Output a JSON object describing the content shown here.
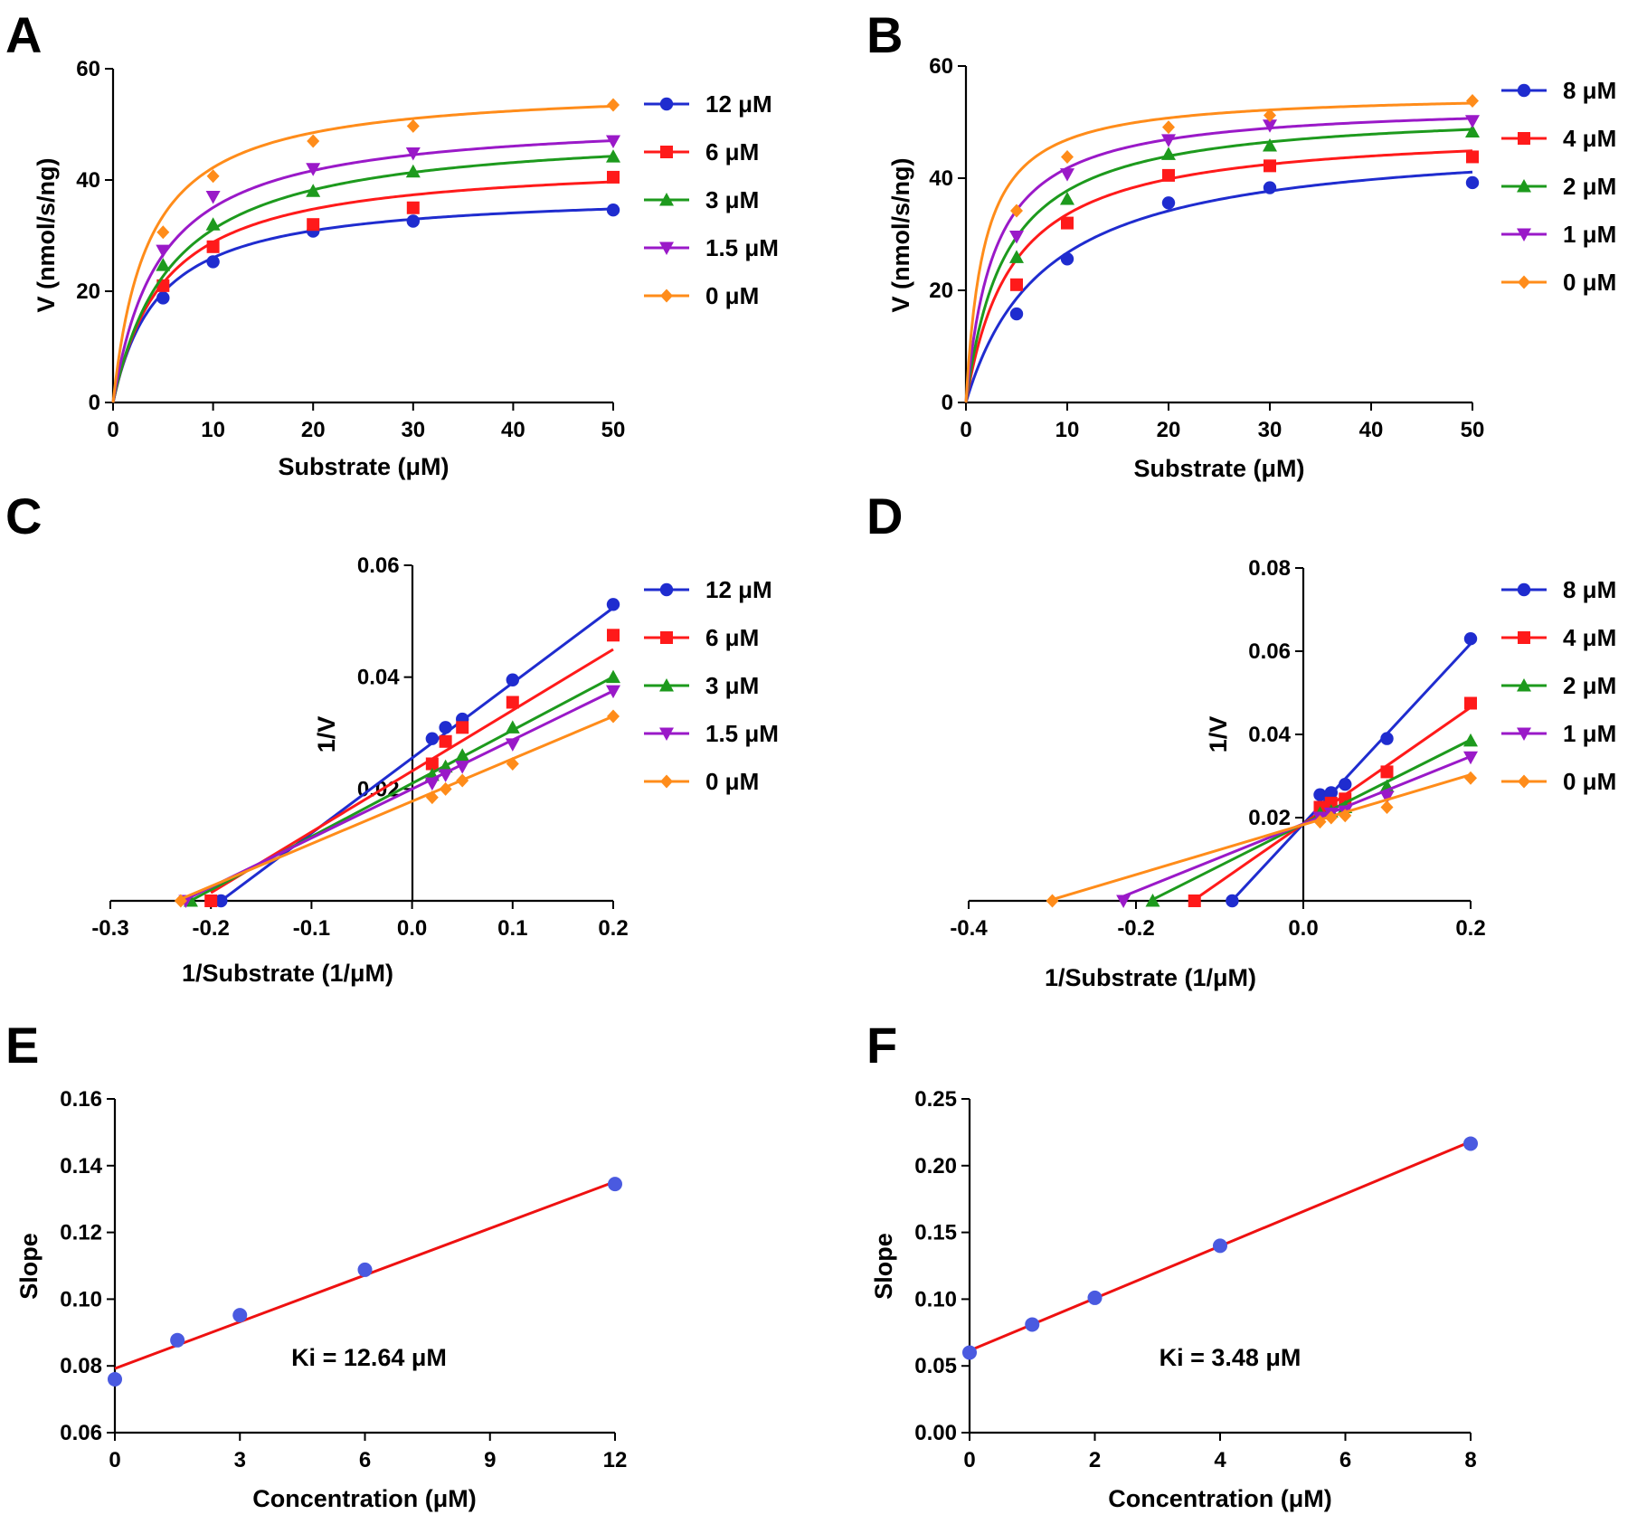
{
  "colors": {
    "blue": "#1f2ccf",
    "red": "#ff1a1a",
    "green": "#1d9a1d",
    "purple": "#9a19c8",
    "orange": "#ff8c1a",
    "point_blue": "#4a5ae0",
    "fit_red": "#ee1111",
    "axis": "#000000"
  },
  "chart_data": [
    {
      "panel": "A",
      "type": "line",
      "xlabel": "Substrate (μM)",
      "ylabel": "V (nmol/s/ng)",
      "xlim": [
        0,
        50
      ],
      "ylim": [
        0,
        60
      ],
      "xticks": [
        0,
        10,
        20,
        30,
        40,
        50
      ],
      "yticks": [
        0,
        20,
        40,
        60
      ],
      "x": [
        5,
        10,
        20,
        30,
        50
      ],
      "legend_position": "right",
      "series": [
        {
          "name": "12 μM",
          "color": "blue",
          "marker": "circle",
          "values": [
            18.8,
            25.3,
            30.8,
            32.6,
            34.6
          ],
          "fit": {
            "vmax": 38.0,
            "km": 4.6
          }
        },
        {
          "name": "6 μM",
          "color": "red",
          "marker": "square",
          "values": [
            21.0,
            28.0,
            32.0,
            35.0,
            40.5
          ],
          "fit": {
            "vmax": 43.8,
            "km": 5.2
          }
        },
        {
          "name": "3 μM",
          "color": "green",
          "marker": "triangle-up",
          "values": [
            24.7,
            32.0,
            38.0,
            41.5,
            44.2
          ],
          "fit": {
            "vmax": 49.5,
            "km": 5.9
          }
        },
        {
          "name": "1.5 μM",
          "color": "purple",
          "marker": "triangle-down",
          "values": [
            27.3,
            37.0,
            42.0,
            44.8,
            47.0
          ],
          "fit": {
            "vmax": 51.5,
            "km": 4.7
          }
        },
        {
          "name": "0 μM",
          "color": "orange",
          "marker": "diamond",
          "values": [
            30.6,
            40.7,
            47.0,
            49.7,
            53.5
          ],
          "fit": {
            "vmax": 57.0,
            "km": 3.5
          }
        }
      ]
    },
    {
      "panel": "B",
      "type": "line",
      "xlabel": "Substrate (μM)",
      "ylabel": "V (nmol/s/ng)",
      "xlim": [
        0,
        50
      ],
      "ylim": [
        0,
        60
      ],
      "xticks": [
        0,
        10,
        20,
        30,
        40,
        50
      ],
      "yticks": [
        0,
        20,
        40,
        60
      ],
      "x": [
        5,
        10,
        20,
        30,
        50
      ],
      "legend_position": "right",
      "series": [
        {
          "name": "8 μM",
          "color": "blue",
          "marker": "circle",
          "values": [
            15.8,
            25.6,
            35.6,
            38.3,
            39.2
          ],
          "fit": {
            "vmax": 47.5,
            "km": 7.8
          }
        },
        {
          "name": "4 μM",
          "color": "red",
          "marker": "square",
          "values": [
            21.0,
            32.0,
            40.5,
            42.2,
            43.8
          ],
          "fit": {
            "vmax": 49.0,
            "km": 4.6
          }
        },
        {
          "name": "2 μM",
          "color": "green",
          "marker": "triangle-up",
          "values": [
            25.9,
            36.3,
            44.3,
            45.8,
            48.3
          ],
          "fit": {
            "vmax": 52.5,
            "km": 3.9
          }
        },
        {
          "name": "1 μM",
          "color": "purple",
          "marker": "triangle-down",
          "values": [
            29.6,
            40.7,
            46.8,
            49.4,
            50.2
          ],
          "fit": {
            "vmax": 53.5,
            "km": 2.8
          }
        },
        {
          "name": "0 μM",
          "color": "orange",
          "marker": "diamond",
          "values": [
            34.2,
            43.8,
            49.1,
            51.2,
            53.8
          ],
          "fit": {
            "vmax": 55.3,
            "km": 1.8
          }
        }
      ]
    },
    {
      "panel": "C",
      "type": "line",
      "xlabel": "1/Substrate (1/μM)",
      "ylabel": "1/V",
      "xlim": [
        -0.3,
        0.2
      ],
      "ylim": [
        0,
        0.06
      ],
      "xticks": [
        -0.3,
        -0.2,
        -0.1,
        0.0,
        0.1,
        0.2
      ],
      "xtick_labels": [
        "-0.3",
        "-0.2",
        "-0.1",
        "0.0",
        "0.1",
        "0.2"
      ],
      "yticks": [
        0.02,
        0.04,
        0.06
      ],
      "ytick_labels": [
        "0.02",
        "0.04",
        "0.06"
      ],
      "x": [
        0.02,
        0.0333,
        0.05,
        0.1,
        0.2
      ],
      "legend_position": "right",
      "series": [
        {
          "name": "12 μM",
          "color": "blue",
          "marker": "circle",
          "values": [
            0.029,
            0.031,
            0.0325,
            0.0395,
            0.053
          ],
          "x_intercept": -0.19,
          "line": {
            "slope": 0.1345,
            "intercept": 0.0255
          }
        },
        {
          "name": "6 μM",
          "color": "red",
          "marker": "square",
          "values": [
            0.0245,
            0.0285,
            0.031,
            0.0355,
            0.0475
          ],
          "x_intercept": -0.2,
          "line": {
            "slope": 0.1088,
            "intercept": 0.0232
          }
        },
        {
          "name": "3 μM",
          "color": "green",
          "marker": "triangle-up",
          "values": [
            0.0225,
            0.024,
            0.026,
            0.031,
            0.04
          ],
          "x_intercept": -0.22,
          "line": {
            "slope": 0.0952,
            "intercept": 0.021
          }
        },
        {
          "name": "1.5 μM",
          "color": "purple",
          "marker": "triangle-down",
          "values": [
            0.021,
            0.0225,
            0.024,
            0.028,
            0.0375
          ],
          "x_intercept": -0.225,
          "line": {
            "slope": 0.0877,
            "intercept": 0.02
          }
        },
        {
          "name": "0 μM",
          "color": "orange",
          "marker": "diamond",
          "values": [
            0.0185,
            0.02,
            0.0215,
            0.0245,
            0.033
          ],
          "x_intercept": -0.23,
          "line": {
            "slope": 0.076,
            "intercept": 0.0178
          }
        }
      ]
    },
    {
      "panel": "D",
      "type": "line",
      "xlabel": "1/Substrate (1/μM)",
      "ylabel": "1/V",
      "xlim": [
        -0.4,
        0.2
      ],
      "ylim": [
        0,
        0.08
      ],
      "xticks": [
        -0.4,
        -0.2,
        0.0,
        0.2
      ],
      "xtick_labels": [
        "-0.4",
        "-0.2",
        "0.0",
        "0.2"
      ],
      "yticks": [
        0.02,
        0.04,
        0.06,
        0.08
      ],
      "ytick_labels": [
        "0.02",
        "0.04",
        "0.06",
        "0.08"
      ],
      "x": [
        0.02,
        0.0333,
        0.05,
        0.1,
        0.2
      ],
      "legend_position": "right",
      "series": [
        {
          "name": "8 μM",
          "color": "blue",
          "marker": "circle",
          "values": [
            0.0255,
            0.026,
            0.028,
            0.039,
            0.063
          ],
          "x_intercept": -0.085,
          "line": {
            "slope": 0.2165,
            "intercept": 0.0185
          }
        },
        {
          "name": "4 μM",
          "color": "red",
          "marker": "square",
          "values": [
            0.0225,
            0.0235,
            0.0245,
            0.031,
            0.0475
          ],
          "x_intercept": -0.13,
          "line": {
            "slope": 0.14,
            "intercept": 0.0185
          }
        },
        {
          "name": "2 μM",
          "color": "green",
          "marker": "triangle-up",
          "values": [
            0.021,
            0.0215,
            0.0225,
            0.0275,
            0.0385
          ],
          "x_intercept": -0.18,
          "line": {
            "slope": 0.101,
            "intercept": 0.0185
          }
        },
        {
          "name": "1 μM",
          "color": "purple",
          "marker": "triangle-down",
          "values": [
            0.02,
            0.021,
            0.0215,
            0.025,
            0.0345
          ],
          "x_intercept": -0.215,
          "line": {
            "slope": 0.081,
            "intercept": 0.0185
          }
        },
        {
          "name": "0 μM",
          "color": "orange",
          "marker": "diamond",
          "values": [
            0.019,
            0.02,
            0.0205,
            0.0225,
            0.0295
          ],
          "x_intercept": -0.3,
          "line": {
            "slope": 0.06,
            "intercept": 0.0183
          }
        }
      ]
    },
    {
      "panel": "E",
      "type": "scatter",
      "xlabel": "Concentration (μM)",
      "ylabel": "Slope",
      "xlim": [
        0,
        12
      ],
      "ylim": [
        0.06,
        0.16
      ],
      "xticks": [
        0,
        3,
        6,
        9,
        12
      ],
      "xtick_labels": [
        "0",
        "3",
        "6",
        "9",
        "12"
      ],
      "yticks": [
        0.06,
        0.08,
        0.1,
        0.12,
        0.14,
        0.16
      ],
      "ytick_labels": [
        "0.06",
        "0.08",
        "0.10",
        "0.12",
        "0.14",
        "0.16"
      ],
      "x": [
        0,
        1.5,
        3,
        6,
        12
      ],
      "values": [
        0.076,
        0.0877,
        0.0952,
        0.1088,
        0.1345
      ],
      "fit_line": {
        "x": [
          0,
          12
        ],
        "y": [
          0.0792,
          0.1352
        ]
      },
      "annotation": "Ki = 12.64 μM"
    },
    {
      "panel": "F",
      "type": "scatter",
      "xlabel": "Concentration (μM)",
      "ylabel": "Slope",
      "xlim": [
        0,
        8
      ],
      "ylim": [
        0,
        0.25
      ],
      "xticks": [
        0,
        2,
        4,
        6,
        8
      ],
      "xtick_labels": [
        "0",
        "2",
        "4",
        "6",
        "8"
      ],
      "yticks": [
        0,
        0.05,
        0.1,
        0.15,
        0.2,
        0.25
      ],
      "ytick_labels": [
        "0.00",
        "0.05",
        "0.10",
        "0.15",
        "0.20",
        "0.25"
      ],
      "x": [
        0,
        1,
        2,
        4,
        8
      ],
      "values": [
        0.06,
        0.081,
        0.101,
        0.14,
        0.2165
      ],
      "fit_line": {
        "x": [
          0,
          8
        ],
        "y": [
          0.0615,
          0.218
        ]
      },
      "annotation": "Ki = 3.48 μM"
    }
  ]
}
